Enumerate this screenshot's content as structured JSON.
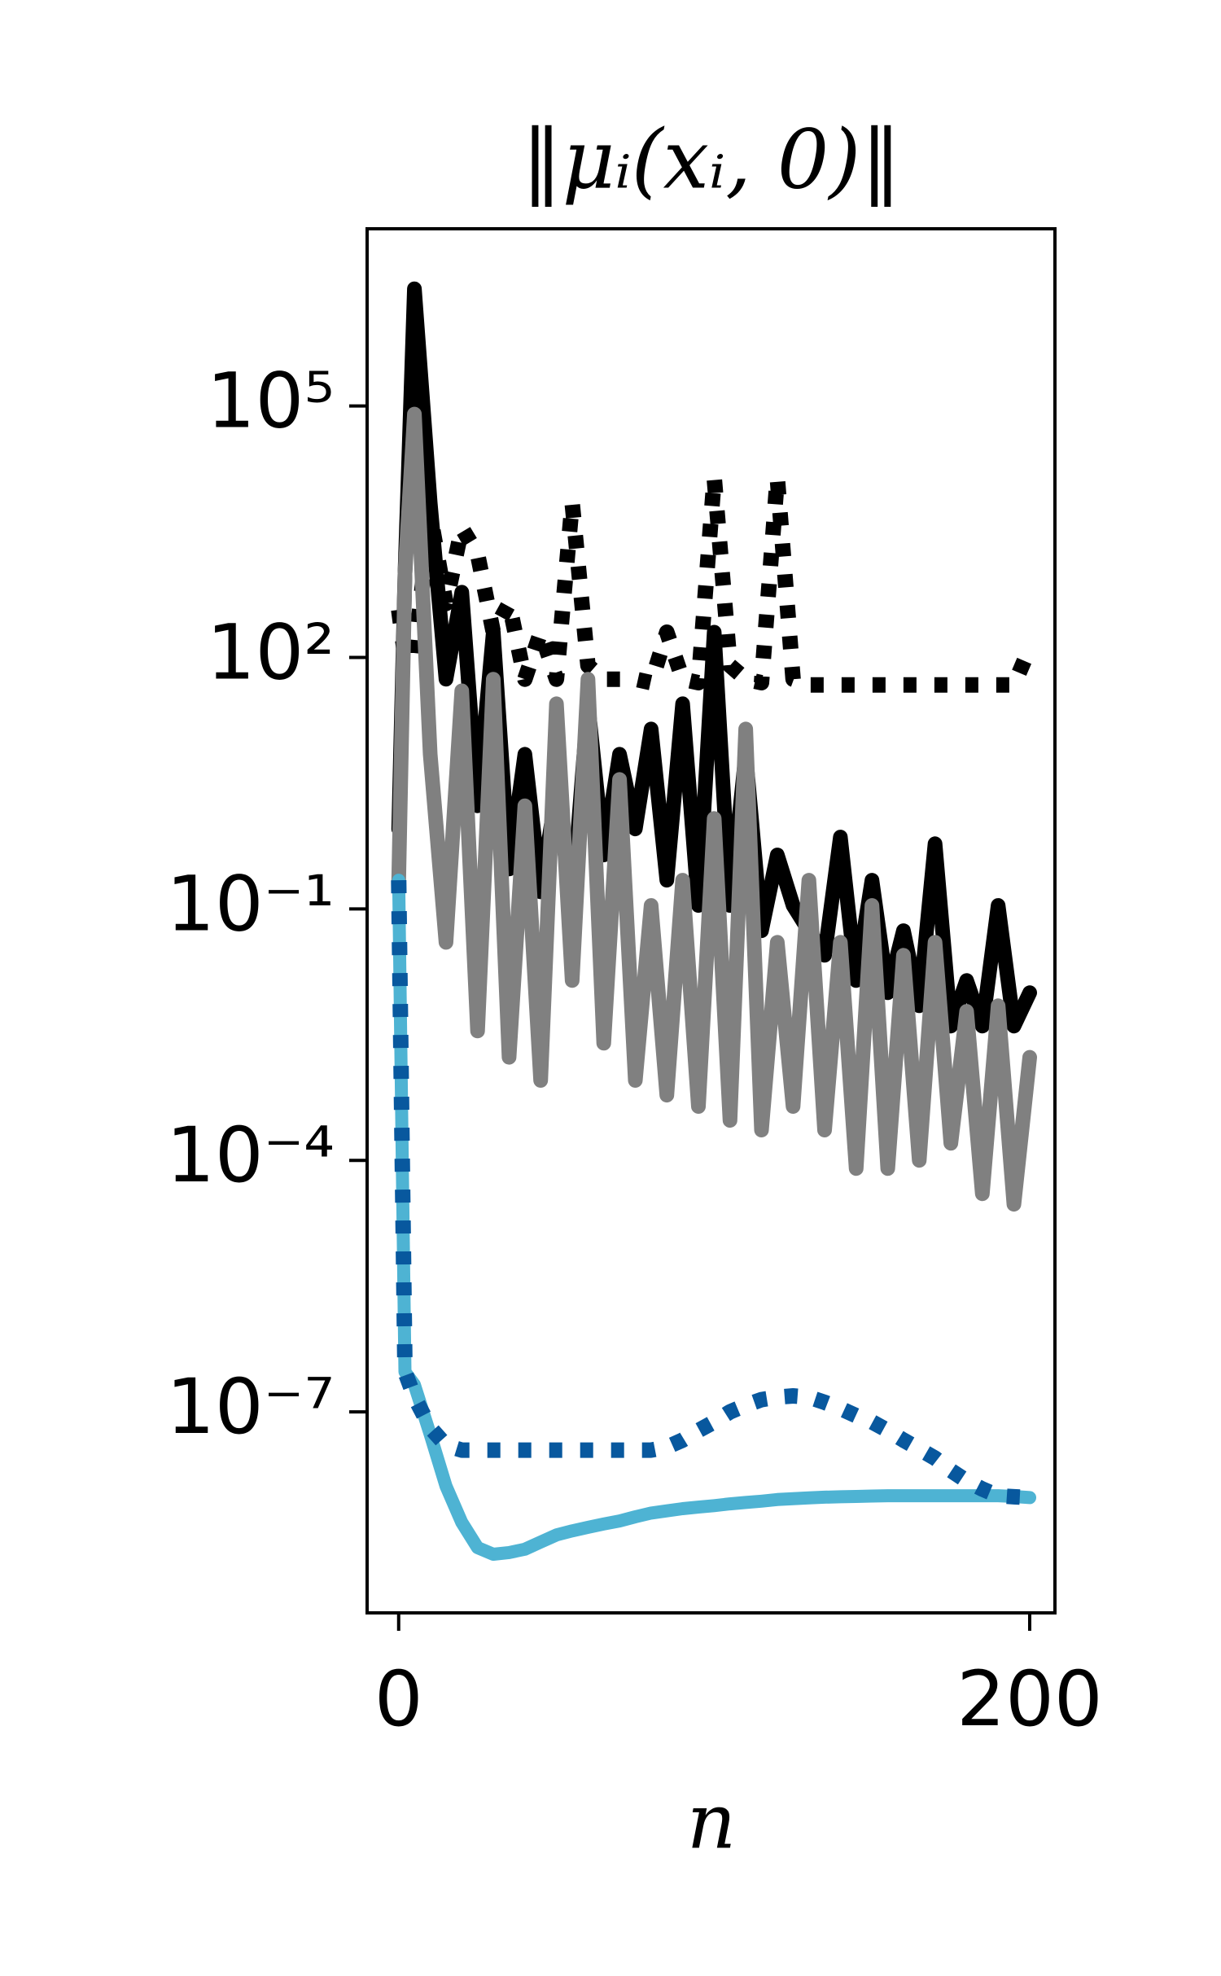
{
  "chart_data": {
    "type": "line",
    "title": "‖μᵢ(xᵢ, 0)‖",
    "xlabel": "n",
    "yscale": "log",
    "x": [
      0,
      2,
      5,
      10,
      15,
      20,
      25,
      30,
      35,
      40,
      45,
      50,
      55,
      60,
      65,
      70,
      75,
      80,
      85,
      90,
      95,
      100,
      105,
      110,
      115,
      120,
      125,
      130,
      135,
      140,
      145,
      150,
      155,
      160,
      165,
      170,
      175,
      180,
      185,
      190,
      195,
      200
    ],
    "series": [
      {
        "color": "#000000",
        "linestyle": "dotted",
        "values": [
          370,
          100,
          100,
          5000,
          440,
          3500,
          1700,
          200,
          440,
          55,
          200,
          55,
          7000,
          80,
          55,
          55,
          55,
          50,
          200,
          55,
          50,
          14000,
          80,
          55,
          50,
          14000,
          55,
          47,
          47,
          47,
          47,
          47,
          47,
          47,
          47,
          47,
          47,
          47,
          47,
          47,
          47,
          130
        ]
      },
      {
        "color": "#000000",
        "linestyle": "solid",
        "values": [
          0.9,
          1000,
          2500000,
          7000,
          55,
          600,
          1.7,
          200,
          0.3,
          7,
          0.16,
          2.5,
          0.11,
          28,
          0.44,
          7,
          0.9,
          14,
          0.22,
          28,
          0.11,
          200,
          0.11,
          7,
          0.055,
          0.44,
          0.11,
          0.055,
          0.028,
          0.72,
          0.014,
          0.22,
          0.01,
          0.055,
          0.007,
          0.6,
          0.004,
          0.014,
          0.004,
          0.11,
          0.004,
          0.01
        ]
      },
      {
        "color": "#808080",
        "linestyle": "solid",
        "values": [
          0.22,
          1000,
          80000,
          7,
          0.04,
          40,
          0.0035,
          55,
          0.0017,
          1.7,
          0.0009,
          28,
          0.014,
          55,
          0.0025,
          3.5,
          0.0009,
          0.11,
          0.0006,
          0.22,
          0.00044,
          1.2,
          0.0003,
          14,
          0.00023,
          0.04,
          0.00044,
          0.22,
          0.00023,
          0.04,
          8e-05,
          0.11,
          8e-05,
          0.028,
          0.0001,
          0.04,
          0.00016,
          0.006,
          4e-05,
          0.007,
          3e-05,
          0.0017
        ]
      },
      {
        "color": "#4eb3d3",
        "linestyle": "solid",
        "values": [
          0.22,
          3e-07,
          2.1e-07,
          5.4e-08,
          1.3e-08,
          4.8e-09,
          2.4e-09,
          2e-09,
          2.1e-09,
          2.3e-09,
          2.8e-09,
          3.4e-09,
          3.8e-09,
          4.2e-09,
          4.6e-09,
          5e-09,
          5.6e-09,
          6.2e-09,
          6.6e-09,
          7e-09,
          7.3e-09,
          7.6e-09,
          8e-09,
          8.3e-09,
          8.6e-09,
          9e-09,
          9.2e-09,
          9.4e-09,
          9.6e-09,
          9.7e-09,
          9.8e-09,
          9.9e-09,
          1e-08,
          1e-08,
          1e-08,
          1e-08,
          1e-08,
          1e-08,
          1e-08,
          1e-08,
          9.8e-09,
          9.5e-09
        ]
      },
      {
        "color": "#08589e",
        "linestyle": "dotted",
        "values": [
          0.22,
          3e-07,
          1.5e-07,
          6.5e-08,
          4e-08,
          3.5e-08,
          3.5e-08,
          3.5e-08,
          3.5e-08,
          3.5e-08,
          3.5e-08,
          3.5e-08,
          3.5e-08,
          3.5e-08,
          3.5e-08,
          3.5e-08,
          3.5e-08,
          3.5e-08,
          3.8e-08,
          4.6e-08,
          6e-08,
          7.6e-08,
          1e-07,
          1.2e-07,
          1.4e-07,
          1.5e-07,
          1.55e-07,
          1.5e-07,
          1.3e-07,
          1.1e-07,
          9e-08,
          7.6e-08,
          6e-08,
          4.6e-08,
          3.6e-08,
          2.8e-08,
          2e-08,
          1.5e-08,
          1.2e-08,
          1e-08,
          9.7e-09,
          9.5e-09
        ]
      }
    ],
    "xlim": [
      -10,
      208
    ],
    "xticks": [
      0,
      200
    ],
    "ylim": [
      4e-10,
      13000000.0
    ],
    "yticks": [
      {
        "value": 100000,
        "label": "10⁵"
      },
      {
        "value": 100,
        "label": "10²"
      },
      {
        "value": 0.1,
        "label": "10⁻¹"
      },
      {
        "value": 0.0001,
        "label": "10⁻⁴"
      },
      {
        "value": 1e-07,
        "label": "10⁻⁷"
      }
    ],
    "grid": false
  }
}
